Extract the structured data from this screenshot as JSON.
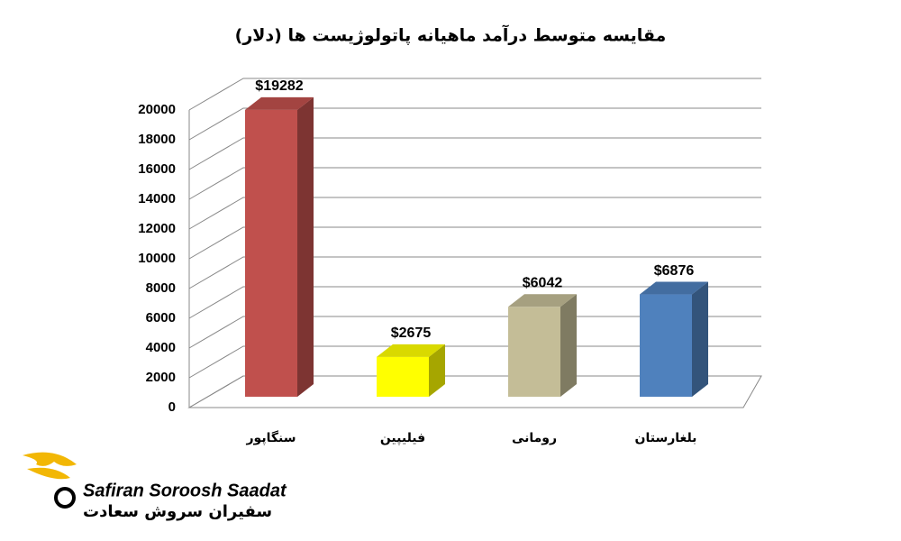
{
  "chart_data": {
    "type": "bar3d",
    "title": "مقایسه متوسط درآمد ماهیانه پاتولوژیست ها (دلار)",
    "categories": [
      "سنگاپور",
      "فیلیپین",
      "رومانی",
      "بلغارستان"
    ],
    "values": [
      19282,
      2675,
      6042,
      6876
    ],
    "value_labels": [
      "$19282",
      "$2675",
      "$6042",
      "$6876"
    ],
    "colors": [
      "#c0504d",
      "#ffff00",
      "#c4bd97",
      "#4f81bd"
    ],
    "ylim": [
      0,
      20000
    ],
    "yticks": [
      0,
      2000,
      4000,
      6000,
      8000,
      10000,
      12000,
      14000,
      16000,
      18000,
      20000
    ],
    "grid": true
  },
  "logo": {
    "name_en": "Safiran Soroosh Saadat",
    "name_fa": "سفیران سروش سعادت"
  }
}
